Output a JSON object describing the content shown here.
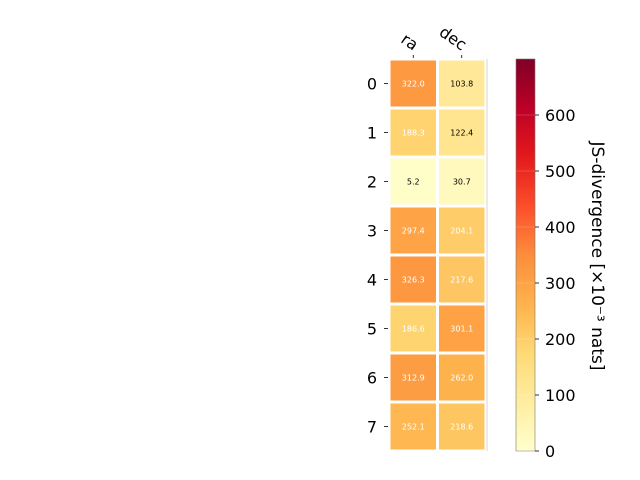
{
  "chart_data": {
    "type": "heatmap",
    "columns": [
      "ra",
      "dec"
    ],
    "rows": [
      "0",
      "1",
      "2",
      "3",
      "4",
      "5",
      "6",
      "7"
    ],
    "values": [
      [
        322.0,
        103.8
      ],
      [
        188.3,
        122.4
      ],
      [
        5.2,
        30.7
      ],
      [
        297.4,
        204.1
      ],
      [
        326.3,
        217.6
      ],
      [
        186.6,
        301.1
      ],
      [
        312.9,
        262.0
      ],
      [
        252.1,
        218.6
      ]
    ],
    "value_labels": [
      [
        "322.0",
        "103.8"
      ],
      [
        "188.3",
        "122.4"
      ],
      [
        "5.2",
        "30.7"
      ],
      [
        "297.4",
        "204.1"
      ],
      [
        "326.3",
        "217.6"
      ],
      [
        "186.6",
        "301.1"
      ],
      [
        "312.9",
        "262.0"
      ],
      [
        "252.1",
        "218.6"
      ]
    ],
    "colorbar": {
      "label": "JS-divergence [×10⁻³ nats]",
      "range": [
        0,
        700
      ],
      "ticks": [
        0,
        100,
        200,
        300,
        400,
        500,
        600
      ],
      "tick_labels": [
        "0",
        "100",
        "200",
        "300",
        "400",
        "500",
        "600"
      ],
      "colormap": "YlOrRd"
    }
  }
}
